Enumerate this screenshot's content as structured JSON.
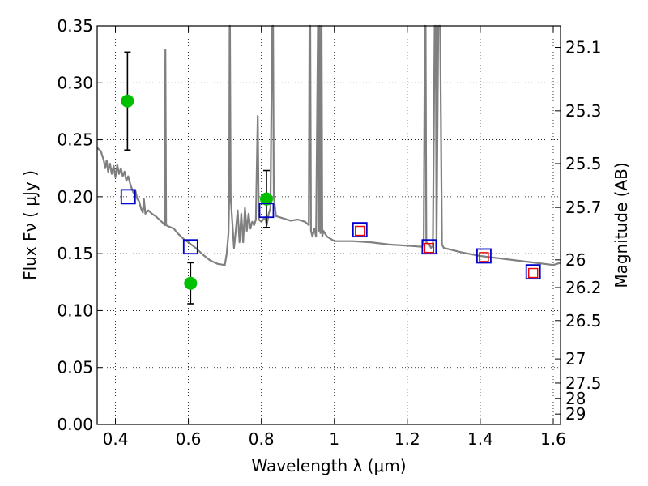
{
  "chart_data": {
    "type": "scatter",
    "title": "",
    "xlabel": "Wavelength  λ (μm)",
    "ylabel": "Flux  Fν  ( μJy )",
    "ylabel_right": "Magnitude (AB)",
    "xlim": [
      0.35,
      1.62
    ],
    "ylim": [
      0.0,
      0.35
    ],
    "grid": true,
    "x_ticks": [
      0.4,
      0.6,
      0.8,
      1.0,
      1.2,
      1.4,
      1.6
    ],
    "x_tick_labels": [
      "0.4",
      "0.6",
      "0.8",
      "1",
      "1.2",
      "1.4",
      "1.6"
    ],
    "y_ticks": [
      0.0,
      0.05,
      0.1,
      0.15,
      0.2,
      0.25,
      0.3,
      0.35
    ],
    "y_tick_labels": [
      "0.00",
      "0.05",
      "0.10",
      "0.15",
      "0.20",
      "0.25",
      "0.30",
      "0.35"
    ],
    "right_ticks": [
      {
        "mag": 25.1,
        "label": "25.1"
      },
      {
        "mag": 25.3,
        "label": "25.3"
      },
      {
        "mag": 25.5,
        "label": "25.5"
      },
      {
        "mag": 25.7,
        "label": "25.7"
      },
      {
        "mag": 26.0,
        "label": "26"
      },
      {
        "mag": 26.2,
        "label": "26.2"
      },
      {
        "mag": 26.5,
        "label": "26.5"
      },
      {
        "mag": 27.0,
        "label": "27"
      },
      {
        "mag": 27.5,
        "label": "27.5"
      },
      {
        "mag": 28.0,
        "label": "28"
      },
      {
        "mag": 29.0,
        "label": "29"
      }
    ],
    "series": [
      {
        "kind": "line",
        "color": "#808080",
        "points": [
          [
            0.35,
            0.243
          ],
          [
            0.36,
            0.24
          ],
          [
            0.368,
            0.232
          ],
          [
            0.372,
            0.225
          ],
          [
            0.376,
            0.232
          ],
          [
            0.38,
            0.222
          ],
          [
            0.385,
            0.229
          ],
          [
            0.39,
            0.22
          ],
          [
            0.395,
            0.227
          ],
          [
            0.4,
            0.217
          ],
          [
            0.405,
            0.228
          ],
          [
            0.41,
            0.22
          ],
          [
            0.415,
            0.225
          ],
          [
            0.42,
            0.218
          ],
          [
            0.425,
            0.222
          ],
          [
            0.43,
            0.214
          ],
          [
            0.435,
            0.218
          ],
          [
            0.44,
            0.212
          ],
          [
            0.445,
            0.207
          ],
          [
            0.45,
            0.203
          ],
          [
            0.455,
            0.205
          ],
          [
            0.46,
            0.198
          ],
          [
            0.465,
            0.196
          ],
          [
            0.47,
            0.19
          ],
          [
            0.475,
            0.186
          ],
          [
            0.478,
            0.198
          ],
          [
            0.482,
            0.185
          ],
          [
            0.49,
            0.188
          ],
          [
            0.5,
            0.185
          ],
          [
            0.51,
            0.183
          ],
          [
            0.52,
            0.18
          ],
          [
            0.53,
            0.177
          ],
          [
            0.535,
            0.175
          ],
          [
            0.537,
            0.329
          ],
          [
            0.539,
            0.175
          ],
          [
            0.545,
            0.174
          ],
          [
            0.56,
            0.172
          ],
          [
            0.57,
            0.168
          ],
          [
            0.58,
            0.165
          ],
          [
            0.59,
            0.162
          ],
          [
            0.6,
            0.16
          ],
          [
            0.62,
            0.155
          ],
          [
            0.64,
            0.149
          ],
          [
            0.66,
            0.144
          ],
          [
            0.68,
            0.141
          ],
          [
            0.7,
            0.14
          ],
          [
            0.705,
            0.15
          ],
          [
            0.71,
            0.168
          ],
          [
            0.712,
            0.2
          ],
          [
            0.713,
            0.35
          ],
          [
            0.714,
            0.35
          ],
          [
            0.716,
            0.2
          ],
          [
            0.72,
            0.18
          ],
          [
            0.725,
            0.155
          ],
          [
            0.73,
            0.17
          ],
          [
            0.735,
            0.188
          ],
          [
            0.74,
            0.16
          ],
          [
            0.745,
            0.185
          ],
          [
            0.75,
            0.16
          ],
          [
            0.755,
            0.19
          ],
          [
            0.76,
            0.17
          ],
          [
            0.765,
            0.185
          ],
          [
            0.77,
            0.172
          ],
          [
            0.775,
            0.178
          ],
          [
            0.78,
            0.175
          ],
          [
            0.785,
            0.18
          ],
          [
            0.79,
            0.271
          ],
          [
            0.793,
            0.18
          ],
          [
            0.8,
            0.178
          ],
          [
            0.81,
            0.182
          ],
          [
            0.815,
            0.175
          ],
          [
            0.82,
            0.185
          ],
          [
            0.825,
            0.19
          ],
          [
            0.828,
            0.3
          ],
          [
            0.83,
            0.35
          ],
          [
            0.832,
            0.35
          ],
          [
            0.834,
            0.2
          ],
          [
            0.84,
            0.183
          ],
          [
            0.86,
            0.181
          ],
          [
            0.88,
            0.179
          ],
          [
            0.9,
            0.18
          ],
          [
            0.92,
            0.178
          ],
          [
            0.93,
            0.175
          ],
          [
            0.932,
            0.35
          ],
          [
            0.934,
            0.35
          ],
          [
            0.936,
            0.17
          ],
          [
            0.94,
            0.165
          ],
          [
            0.945,
            0.172
          ],
          [
            0.95,
            0.165
          ],
          [
            0.955,
            0.35
          ],
          [
            0.957,
            0.17
          ],
          [
            0.96,
            0.35
          ],
          [
            0.962,
            0.168
          ],
          [
            0.965,
            0.35
          ],
          [
            0.967,
            0.165
          ],
          [
            0.97,
            0.17
          ],
          [
            0.98,
            0.165
          ],
          [
            1.0,
            0.161
          ],
          [
            1.05,
            0.161
          ],
          [
            1.1,
            0.16
          ],
          [
            1.15,
            0.158
          ],
          [
            1.2,
            0.157
          ],
          [
            1.24,
            0.156
          ],
          [
            1.245,
            0.16
          ],
          [
            1.248,
            0.35
          ],
          [
            1.25,
            0.35
          ],
          [
            1.252,
            0.16
          ],
          [
            1.26,
            0.158
          ],
          [
            1.265,
            0.155
          ],
          [
            1.27,
            0.157
          ],
          [
            1.275,
            0.35
          ],
          [
            1.278,
            0.35
          ],
          [
            1.28,
            0.157
          ],
          [
            1.285,
            0.35
          ],
          [
            1.29,
            0.35
          ],
          [
            1.295,
            0.158
          ],
          [
            1.3,
            0.155
          ],
          [
            1.35,
            0.151
          ],
          [
            1.4,
            0.148
          ],
          [
            1.45,
            0.146
          ],
          [
            1.5,
            0.144
          ],
          [
            1.55,
            0.142
          ],
          [
            1.6,
            0.14
          ],
          [
            1.61,
            0.141
          ],
          [
            1.62,
            0.142
          ]
        ]
      },
      {
        "kind": "scatter",
        "marker": "circle",
        "color": "#00c000",
        "points": [
          {
            "x": 0.433,
            "y": 0.284,
            "err": 0.043
          },
          {
            "x": 0.606,
            "y": 0.124,
            "err": 0.018
          },
          {
            "x": 0.814,
            "y": 0.198,
            "err": 0.025
          }
        ]
      },
      {
        "kind": "scatter",
        "marker": "square-open",
        "color": "#0000cc",
        "points": [
          {
            "x": 0.435,
            "y": 0.2
          },
          {
            "x": 0.606,
            "y": 0.156
          },
          {
            "x": 0.814,
            "y": 0.188
          },
          {
            "x": 1.07,
            "y": 0.171
          },
          {
            "x": 1.26,
            "y": 0.156
          },
          {
            "x": 1.41,
            "y": 0.148
          },
          {
            "x": 1.545,
            "y": 0.134
          }
        ]
      },
      {
        "kind": "scatter",
        "marker": "square-open-small",
        "color": "#ee0000",
        "points": [
          {
            "x": 1.07,
            "y": 0.17
          },
          {
            "x": 1.26,
            "y": 0.155
          },
          {
            "x": 1.41,
            "y": 0.147
          },
          {
            "x": 1.545,
            "y": 0.133
          }
        ]
      }
    ]
  }
}
